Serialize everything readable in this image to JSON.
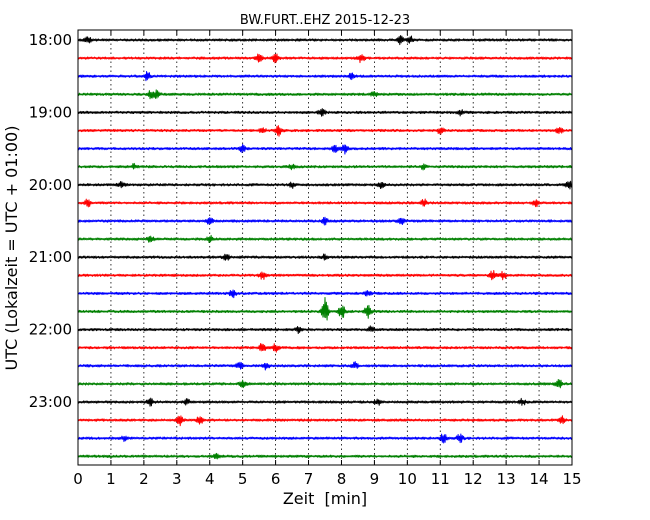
{
  "chart_data": {
    "type": "line",
    "title": "BW.FURT..EHZ 2015-12-23",
    "xlabel": "Zeit  [min]",
    "ylabel": "UTC (Lokalzeit = UTC + 01:00)",
    "xlim": [
      0,
      15
    ],
    "x_ticks": [
      0,
      1,
      2,
      3,
      4,
      5,
      6,
      7,
      8,
      9,
      10,
      11,
      12,
      13,
      14,
      15
    ],
    "y_time_ticks": [
      "18:00",
      "19:00",
      "20:00",
      "21:00",
      "22:00",
      "23:00"
    ],
    "grid": "vertical dotted",
    "trace_interval_min": 15,
    "colors": [
      "#000000",
      "#ff0000",
      "#0000ff",
      "#008000"
    ],
    "series": [
      {
        "start": "18:00",
        "color": "#000000",
        "events": [
          {
            "x": 0.3,
            "amp": 0.35
          },
          {
            "x": 9.8,
            "amp": 0.45
          },
          {
            "x": 10.1,
            "amp": 0.35
          }
        ]
      },
      {
        "start": "18:15",
        "color": "#ff0000",
        "events": [
          {
            "x": 5.5,
            "amp": 0.45
          },
          {
            "x": 6.0,
            "amp": 0.5
          },
          {
            "x": 8.6,
            "amp": 0.45
          }
        ]
      },
      {
        "start": "18:30",
        "color": "#0000ff",
        "events": [
          {
            "x": 2.1,
            "amp": 0.5
          },
          {
            "x": 8.3,
            "amp": 0.3
          }
        ]
      },
      {
        "start": "18:45",
        "color": "#008000",
        "events": [
          {
            "x": 2.2,
            "amp": 0.45
          },
          {
            "x": 2.4,
            "amp": 0.4
          },
          {
            "x": 9.0,
            "amp": 0.3
          }
        ]
      },
      {
        "start": "19:00",
        "color": "#000000",
        "events": [
          {
            "x": 7.4,
            "amp": 0.45
          },
          {
            "x": 11.6,
            "amp": 0.35
          }
        ]
      },
      {
        "start": "19:15",
        "color": "#ff0000",
        "events": [
          {
            "x": 5.6,
            "amp": 0.35
          },
          {
            "x": 6.1,
            "amp": 0.5
          },
          {
            "x": 11.0,
            "amp": 0.35
          },
          {
            "x": 14.6,
            "amp": 0.5
          }
        ]
      },
      {
        "start": "19:30",
        "color": "#0000ff",
        "events": [
          {
            "x": 5.0,
            "amp": 0.35
          },
          {
            "x": 7.8,
            "amp": 0.4
          },
          {
            "x": 8.1,
            "amp": 0.5
          }
        ]
      },
      {
        "start": "19:45",
        "color": "#008000",
        "events": [
          {
            "x": 1.7,
            "amp": 0.25
          },
          {
            "x": 6.5,
            "amp": 0.25
          },
          {
            "x": 10.5,
            "amp": 0.25
          }
        ]
      },
      {
        "start": "20:00",
        "color": "#000000",
        "events": [
          {
            "x": 1.3,
            "amp": 0.3
          },
          {
            "x": 6.5,
            "amp": 0.3
          },
          {
            "x": 9.2,
            "amp": 0.3
          },
          {
            "x": 14.9,
            "amp": 0.4
          }
        ]
      },
      {
        "start": "20:15",
        "color": "#ff0000",
        "events": [
          {
            "x": 0.3,
            "amp": 0.4
          },
          {
            "x": 10.5,
            "amp": 0.45
          },
          {
            "x": 13.9,
            "amp": 0.35
          }
        ]
      },
      {
        "start": "20:30",
        "color": "#0000ff",
        "events": [
          {
            "x": 4.0,
            "amp": 0.4
          },
          {
            "x": 7.5,
            "amp": 0.4
          },
          {
            "x": 9.8,
            "amp": 0.45
          }
        ]
      },
      {
        "start": "20:45",
        "color": "#008000",
        "events": [
          {
            "x": 2.2,
            "amp": 0.3
          },
          {
            "x": 4.0,
            "amp": 0.35
          }
        ]
      },
      {
        "start": "21:00",
        "color": "#000000",
        "events": [
          {
            "x": 4.5,
            "amp": 0.45
          },
          {
            "x": 7.5,
            "amp": 0.3
          }
        ]
      },
      {
        "start": "21:15",
        "color": "#ff0000",
        "events": [
          {
            "x": 5.6,
            "amp": 0.45
          },
          {
            "x": 12.6,
            "amp": 0.5
          },
          {
            "x": 12.9,
            "amp": 0.45
          }
        ]
      },
      {
        "start": "21:30",
        "color": "#0000ff",
        "events": [
          {
            "x": 4.7,
            "amp": 0.4
          },
          {
            "x": 8.8,
            "amp": 0.3
          }
        ]
      },
      {
        "start": "21:45",
        "color": "#008000",
        "events": [
          {
            "x": 7.5,
            "amp": 1.6
          },
          {
            "x": 8.0,
            "amp": 0.9
          },
          {
            "x": 8.8,
            "amp": 0.7
          }
        ]
      },
      {
        "start": "22:00",
        "color": "#000000",
        "events": [
          {
            "x": 6.7,
            "amp": 0.35
          },
          {
            "x": 8.9,
            "amp": 0.3
          }
        ]
      },
      {
        "start": "22:15",
        "color": "#ff0000",
        "events": [
          {
            "x": 5.6,
            "amp": 0.5
          },
          {
            "x": 6.0,
            "amp": 0.4
          }
        ]
      },
      {
        "start": "22:30",
        "color": "#0000ff",
        "events": [
          {
            "x": 4.9,
            "amp": 0.4
          },
          {
            "x": 5.7,
            "amp": 0.5
          },
          {
            "x": 8.4,
            "amp": 0.35
          }
        ]
      },
      {
        "start": "22:45",
        "color": "#008000",
        "events": [
          {
            "x": 5.0,
            "amp": 0.3
          },
          {
            "x": 14.6,
            "amp": 0.5
          }
        ]
      },
      {
        "start": "23:00",
        "color": "#000000",
        "events": [
          {
            "x": 2.2,
            "amp": 0.45
          },
          {
            "x": 3.3,
            "amp": 0.3
          },
          {
            "x": 9.1,
            "amp": 0.3
          },
          {
            "x": 13.5,
            "amp": 0.35
          }
        ]
      },
      {
        "start": "23:15",
        "color": "#ff0000",
        "events": [
          {
            "x": 3.1,
            "amp": 0.5
          },
          {
            "x": 3.7,
            "amp": 0.4
          },
          {
            "x": 14.7,
            "amp": 0.45
          }
        ]
      },
      {
        "start": "23:30",
        "color": "#0000ff",
        "events": [
          {
            "x": 1.4,
            "amp": 0.25
          },
          {
            "x": 11.1,
            "amp": 0.5
          },
          {
            "x": 11.6,
            "amp": 0.45
          }
        ]
      },
      {
        "start": "23:45",
        "color": "#008000",
        "events": [
          {
            "x": 4.2,
            "amp": 0.3
          }
        ]
      }
    ]
  }
}
